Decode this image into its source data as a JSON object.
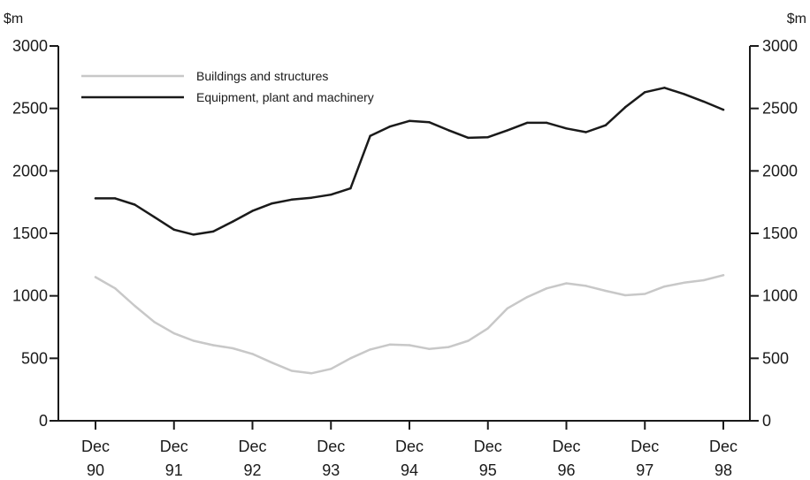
{
  "chart_data": {
    "type": "line",
    "y_unit_left": "$m",
    "y_unit_right": "$m",
    "ylim": [
      0,
      3000
    ],
    "yticks": [
      0,
      500,
      1000,
      1500,
      2000,
      2500,
      3000
    ],
    "xlim": [
      0,
      32
    ],
    "xticks": [
      {
        "pos": 0,
        "line1": "Dec",
        "line2": "90"
      },
      {
        "pos": 4,
        "line1": "Dec",
        "line2": "91"
      },
      {
        "pos": 8,
        "line1": "Dec",
        "line2": "92"
      },
      {
        "pos": 12,
        "line1": "Dec",
        "line2": "93"
      },
      {
        "pos": 16,
        "line1": "Dec",
        "line2": "94"
      },
      {
        "pos": 20,
        "line1": "Dec",
        "line2": "95"
      },
      {
        "pos": 24,
        "line1": "Dec",
        "line2": "96"
      },
      {
        "pos": 28,
        "line1": "Dec",
        "line2": "97"
      },
      {
        "pos": 32,
        "line1": "Dec",
        "line2": "98"
      }
    ],
    "legend_position": "top-left",
    "series": [
      {
        "name": "Buildings and structures",
        "color": "#c8c8c8",
        "values": [
          1150,
          1060,
          920,
          790,
          700,
          640,
          605,
          580,
          535,
          465,
          400,
          380,
          415,
          500,
          570,
          610,
          605,
          575,
          590,
          640,
          740,
          900,
          990,
          1060,
          1100,
          1080,
          1040,
          1005,
          1015,
          1075,
          1105,
          1125,
          1165
        ]
      },
      {
        "name": "Equipment, plant and machinery",
        "color": "#1a1a1a",
        "values": [
          1780,
          1780,
          1730,
          1630,
          1530,
          1490,
          1515,
          1595,
          1680,
          1740,
          1770,
          1785,
          1810,
          1860,
          2280,
          2355,
          2400,
          2390,
          2325,
          2265,
          2270,
          2325,
          2385,
          2385,
          2340,
          2310,
          2365,
          2510,
          2630,
          2665,
          2615,
          2555,
          2490
        ]
      }
    ]
  }
}
